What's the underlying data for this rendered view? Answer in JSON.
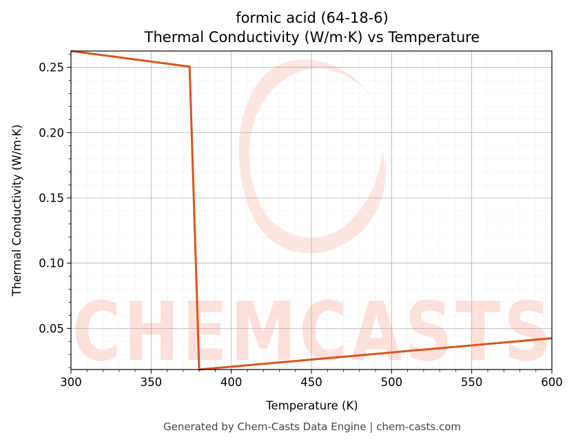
{
  "chart_data": {
    "type": "line",
    "title_line1": "formic acid (64-18-6)",
    "title_line2": "Thermal Conductivity (W/m·K) vs Temperature",
    "xlabel": "Temperature (K)",
    "ylabel": "Thermal Conductivity (W/m·K)",
    "xlim": [
      300,
      600
    ],
    "ylim": [
      0.0185,
      0.2625
    ],
    "xticks": [
      300,
      350,
      400,
      450,
      500,
      550,
      600
    ],
    "xtick_labels": [
      "300",
      "350",
      "400",
      "450",
      "500",
      "550",
      "600"
    ],
    "yticks": [
      0.05,
      0.1,
      0.15,
      0.2,
      0.25
    ],
    "ytick_labels": [
      "0.05",
      "0.10",
      "0.15",
      "0.20",
      "0.25"
    ],
    "grid": true,
    "series": [
      {
        "color": "#d9531e",
        "x": [
          300,
          374,
          380,
          600
        ],
        "y": [
          0.2625,
          0.2505,
          0.0185,
          0.0425
        ]
      }
    ]
  },
  "watermark": {
    "text": "CHEMCASTS",
    "color": "#fde0da"
  },
  "footer": "Generated by Chem-Casts Data Engine | chem-casts.com"
}
